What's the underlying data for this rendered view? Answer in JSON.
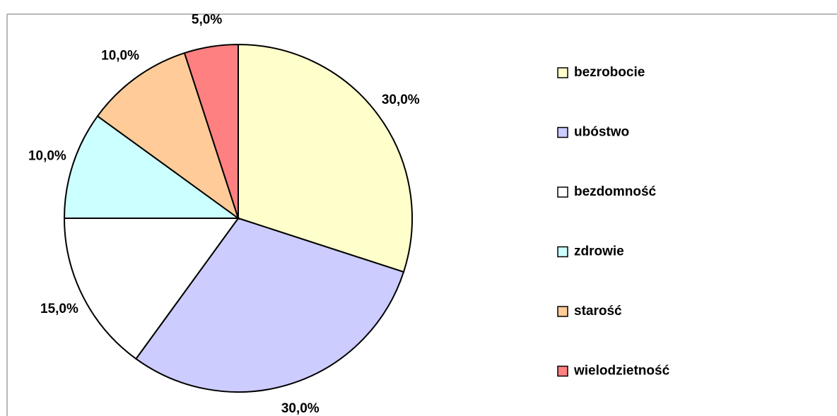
{
  "chart_data": {
    "type": "pie",
    "categories": [
      "bezrobocie",
      "ubóstwo",
      "bezdomność",
      "zdrowie",
      "starość",
      "wielodzietność"
    ],
    "values": [
      30,
      30,
      15,
      10,
      10,
      5
    ],
    "value_labels": [
      "30,0%",
      "30,0%",
      "15,0%",
      "10,0%",
      "10,0%",
      "5,0%"
    ],
    "colors": [
      "#FFFFCC",
      "#CCCCFF",
      "#FFFFFF",
      "#CCFFFF",
      "#FFCC99",
      "#FF8080"
    ],
    "legend": "right"
  }
}
